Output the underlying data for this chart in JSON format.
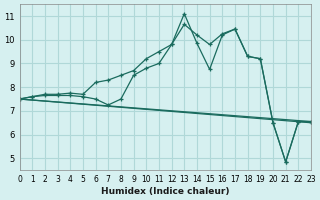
{
  "xlabel": "Humidex (Indice chaleur)",
  "xlim": [
    0,
    23
  ],
  "ylim": [
    4.5,
    11.5
  ],
  "yticks": [
    5,
    6,
    7,
    8,
    9,
    10,
    11
  ],
  "xtick_labels": [
    "0",
    "1",
    "2",
    "3",
    "4",
    "5",
    "6",
    "7",
    "8",
    "9",
    "10",
    "11",
    "12",
    "13",
    "14",
    "15",
    "16",
    "17",
    "18",
    "19",
    "20",
    "21",
    "22",
    "23"
  ],
  "bg_color": "#d6f0f0",
  "grid_color": "#b0d8d8",
  "line_color": "#1a6b5e",
  "series1_x": [
    0,
    1,
    2,
    3,
    4,
    5,
    6,
    7,
    8,
    9,
    10,
    11,
    12,
    13,
    14,
    15,
    16,
    17,
    18,
    19,
    20,
    21,
    22,
    23
  ],
  "series1_y": [
    7.5,
    7.6,
    7.7,
    7.7,
    7.75,
    7.7,
    8.2,
    8.3,
    8.5,
    8.7,
    9.2,
    9.5,
    9.8,
    11.1,
    9.85,
    8.75,
    10.2,
    10.45,
    9.3,
    9.2,
    6.5,
    4.85,
    6.55,
    6.55
  ],
  "series2_x": [
    0,
    1,
    2,
    3,
    4,
    5,
    6,
    7,
    8,
    9,
    10,
    11,
    12,
    13,
    14,
    15,
    16,
    17,
    18,
    19,
    20,
    21,
    22,
    23
  ],
  "series2_y": [
    7.5,
    7.6,
    7.65,
    7.65,
    7.65,
    7.6,
    7.5,
    7.25,
    7.5,
    8.5,
    8.8,
    9.0,
    9.8,
    10.65,
    10.2,
    9.8,
    10.25,
    10.45,
    9.3,
    9.2,
    6.5,
    4.85,
    6.55,
    6.55
  ],
  "series3_x": [
    0,
    23
  ],
  "series3_y": [
    7.5,
    6.5
  ],
  "series4_x": [
    0,
    23
  ],
  "series4_y": [
    7.5,
    6.55
  ]
}
